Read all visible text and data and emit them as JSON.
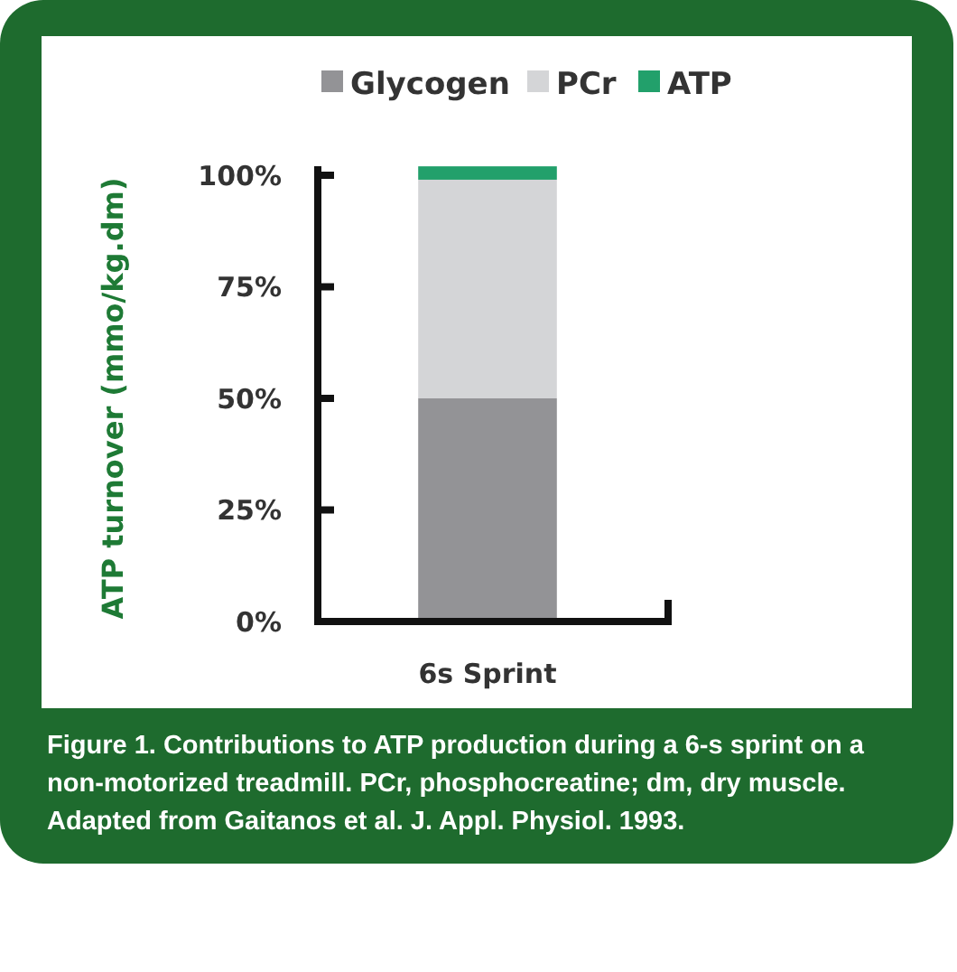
{
  "chart_data": {
    "type": "bar",
    "stacked": true,
    "ylabel": "ATP turnover (mmo/kg.dm)",
    "categories": [
      "6s Sprint"
    ],
    "series": [
      {
        "name": "Glycogen",
        "color": "#939396",
        "values": [
          50
        ]
      },
      {
        "name": "PCr",
        "color": "#d4d5d7",
        "values": [
          49
        ]
      },
      {
        "name": "ATP",
        "color": "#22a06b",
        "values": [
          3
        ]
      }
    ],
    "ylim": [
      0,
      102
    ],
    "yticks": [
      {
        "value": 0,
        "label": "0%"
      },
      {
        "value": 25,
        "label": "25%"
      },
      {
        "value": 50,
        "label": "50%"
      },
      {
        "value": 75,
        "label": "75%"
      },
      {
        "value": 100,
        "label": "100%"
      }
    ],
    "legend": "top",
    "annotations": [
      "Figure 1. Contributions to ATP production during a 6-s sprint on a",
      "non-motorized treadmill. PCr, phosphocreatine; dm, dry muscle.",
      "Adapted from Gaitanos et al. J. Appl. Physiol. 1993."
    ]
  }
}
